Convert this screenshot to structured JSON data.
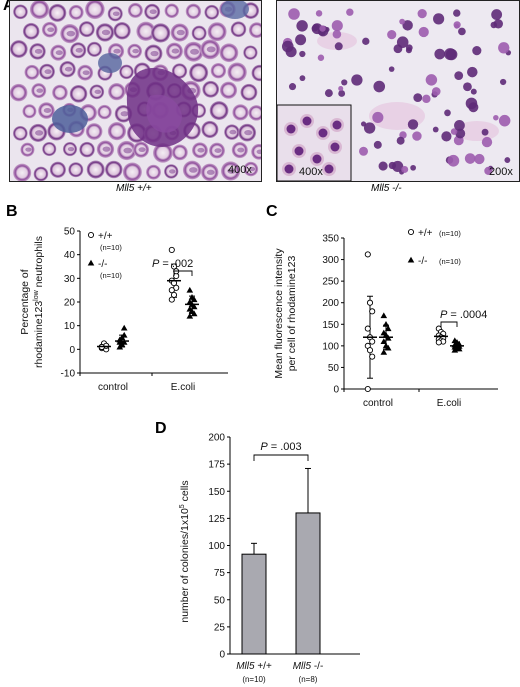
{
  "panel_labels": {
    "a": "A",
    "b": "B",
    "c": "C",
    "d": "D"
  },
  "micrographs": {
    "left": {
      "magnification": "400x",
      "genotype": "Mll5 +/+"
    },
    "right": {
      "magnification": "200x",
      "inset_magnification": "400x",
      "genotype": "Mll5 -/-"
    }
  },
  "colors": {
    "wt_marker": "#ffffff",
    "ko_marker": "#000000",
    "bar_fill": "#a9a9b0",
    "stain_purple": "#7a3a8c",
    "stain_pink": "#d9b8d3"
  },
  "chart_data": [
    {
      "id": "B",
      "type": "scatter",
      "ylabel_line1": "Percentage of",
      "ylabel_line2": "rhodamine123",
      "ylabel_superscript": "low",
      "ylabel_line2_tail": " neutrophils",
      "categories": [
        "control",
        "E.coli"
      ],
      "ylim": [
        -10,
        50
      ],
      "yticks": [
        "50",
        "40",
        "30",
        "20",
        "10",
        "0",
        "-10"
      ],
      "legend": [
        {
          "marker": "circle",
          "label": "+/+",
          "sub": "(n=10)"
        },
        {
          "marker": "triangle",
          "label": "-/-",
          "sub": "(n=10)"
        }
      ],
      "annotation": {
        "prefix": "P",
        "text": " = .002",
        "between": "E.coli"
      },
      "series": [
        {
          "name": "+/+",
          "marker": "circle",
          "category": "control",
          "values": [
            0.5,
            1,
            1.5,
            1,
            2,
            0,
            1,
            2.5,
            1.5,
            1
          ],
          "mean": 1.2,
          "sd": 1.0
        },
        {
          "name": "-/-",
          "marker": "triangle",
          "category": "control",
          "values": [
            1,
            2,
            3,
            4,
            5,
            6,
            3,
            2,
            9,
            4
          ],
          "mean": 3.5,
          "sd": 2.5
        },
        {
          "name": "+/+",
          "marker": "circle",
          "category": "E.coli",
          "values": [
            42,
            35,
            31,
            29,
            28,
            26,
            25,
            23,
            33,
            21
          ],
          "mean": 29,
          "sd": 7
        },
        {
          "name": "-/-",
          "marker": "triangle",
          "category": "E.coli",
          "values": [
            25,
            22,
            21,
            20,
            19,
            18,
            17,
            16,
            15,
            14
          ],
          "mean": 19,
          "sd": 3.5
        }
      ]
    },
    {
      "id": "C",
      "type": "scatter",
      "ylabel_line1": "Mean fluorescence intensity",
      "ylabel_line2": "per cell of rhodamine123",
      "categories": [
        "control",
        "E.coli"
      ],
      "ylim": [
        0,
        350
      ],
      "yticks": [
        "350",
        "300",
        "250",
        "200",
        "150",
        "100",
        "50",
        "0"
      ],
      "legend": [
        {
          "marker": "circle",
          "label": "+/+",
          "sub": "(n=10)"
        },
        {
          "marker": "triangle",
          "label": "-/-",
          "sub": "(n=10)"
        }
      ],
      "annotation": {
        "prefix": "P",
        "text": " = .0004",
        "between": "E.coli"
      },
      "series": [
        {
          "name": "+/+",
          "marker": "circle",
          "category": "control",
          "values": [
            312,
            200,
            180,
            140,
            120,
            110,
            100,
            90,
            75,
            0
          ],
          "mean": 120,
          "sd": 95
        },
        {
          "name": "-/-",
          "marker": "triangle",
          "category": "control",
          "values": [
            170,
            150,
            140,
            130,
            125,
            118,
            110,
            100,
            95,
            85
          ],
          "mean": 120,
          "sd": 28
        },
        {
          "name": "+/+",
          "marker": "circle",
          "category": "E.coli",
          "values": [
            140,
            132,
            128,
            124,
            120,
            118,
            115,
            112,
            110,
            108
          ],
          "mean": 122,
          "sd": 12
        },
        {
          "name": "-/-",
          "marker": "triangle",
          "category": "E.coli",
          "values": [
            112,
            108,
            104,
            102,
            100,
            99,
            97,
            95,
            93,
            90
          ],
          "mean": 100,
          "sd": 9
        }
      ]
    },
    {
      "id": "D",
      "type": "bar",
      "ylabel": "number of colonies/1x10",
      "ylabel_sup": "5",
      "ylabel_tail": " cells",
      "ylim": [
        0,
        200
      ],
      "yticks": [
        "200",
        "175",
        "150",
        "125",
        "100",
        "75",
        "50",
        "25",
        "0"
      ],
      "categories": [
        "Mll5 +/+",
        "Mll5 -/-"
      ],
      "category_notes": [
        "(n=10)",
        "(n=8)"
      ],
      "values": [
        92,
        130
      ],
      "errors": [
        10,
        41
      ],
      "annotation": {
        "prefix": "P",
        "text": " = .003"
      }
    }
  ]
}
